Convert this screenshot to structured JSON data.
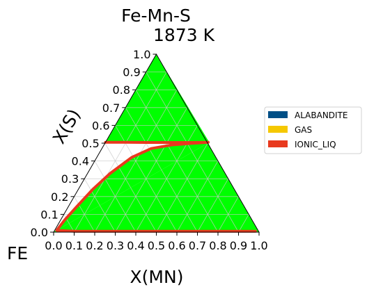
{
  "chart_data": {
    "type": "ternary-phase-diagram",
    "title": "Fe-Mn-S",
    "subtitle": "1873  K",
    "xlabel": "X(MN)",
    "ylabel": "X(S)",
    "corner_label": "FE",
    "xlim": [
      0,
      1
    ],
    "ylim": [
      0,
      1
    ],
    "x_ticks": [
      "0.0",
      "0.1",
      "0.2",
      "0.3",
      "0.4",
      "0.5",
      "0.6",
      "0.7",
      "0.8",
      "0.9",
      "1.0"
    ],
    "y_ticks": [
      "0.0",
      "0.1",
      "0.2",
      "0.3",
      "0.4",
      "0.5",
      "0.6",
      "0.7",
      "0.8",
      "0.9",
      "1.0"
    ],
    "grid": true,
    "legend_position": "right",
    "legend": [
      {
        "name": "ALABANDITE",
        "color": "#004f86"
      },
      {
        "name": "GAS",
        "color": "#f5c800"
      },
      {
        "name": "IONIC_LIQ",
        "color": "#e8391e"
      }
    ],
    "regions": [
      {
        "name": "two-phase-upper",
        "color": "#00ff00",
        "points": [
          [
            0.0,
            0.51
          ],
          [
            0.5,
            0.51
          ],
          [
            0.0,
            1.0
          ]
        ]
      },
      {
        "name": "two-phase-lower",
        "color": "#00ff00",
        "points": [
          [
            0.0,
            0.0
          ],
          [
            0.5,
            0.5
          ],
          [
            0.49,
            0.51
          ],
          [
            0.27,
            0.48
          ],
          [
            0.18,
            0.43
          ],
          [
            0.11,
            0.33
          ],
          [
            0.05,
            0.19
          ],
          [
            0.02,
            0.08
          ],
          [
            0.01,
            0.02
          ]
        ]
      }
    ],
    "boundaries": [
      {
        "name": "IONIC_LIQ",
        "color": "#e8391e",
        "points": [
          [
            0.0,
            0.505
          ],
          [
            0.1,
            0.505
          ],
          [
            0.2,
            0.504
          ],
          [
            0.3,
            0.504
          ],
          [
            0.4,
            0.504
          ],
          [
            0.5,
            0.505
          ],
          [
            0.4,
            0.497
          ],
          [
            0.33,
            0.49
          ],
          [
            0.24,
            0.47
          ],
          [
            0.17,
            0.42
          ],
          [
            0.11,
            0.33
          ],
          [
            0.07,
            0.24
          ],
          [
            0.04,
            0.14
          ],
          [
            0.02,
            0.07
          ],
          [
            0.01,
            0.01
          ],
          [
            0.1,
            0.005
          ],
          [
            0.3,
            0.005
          ],
          [
            0.5,
            0.005
          ],
          [
            0.7,
            0.005
          ],
          [
            0.98,
            0.005
          ]
        ]
      }
    ]
  }
}
